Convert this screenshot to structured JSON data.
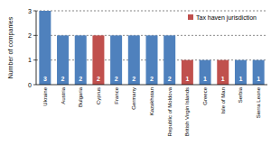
{
  "chart_data": {
    "type": "bar",
    "y_label": "Number of companies",
    "categories": [
      "Ukraine",
      "Austria",
      "Bulgaria",
      "Cyprus",
      "France",
      "Germany",
      "Kazakhstan",
      "Republic of Moldova",
      "British Virgin Islands",
      "Greece",
      "Isle of Man",
      "Serbia",
      "Sierra Leone"
    ],
    "series": [
      {
        "color": "#4f81bd",
        "values": [
          3,
          2,
          2,
          null,
          2,
          2,
          2,
          2,
          null,
          1,
          null,
          1,
          1
        ]
      },
      {
        "name": "Tax haven jurisdiction",
        "color": "#c0504d",
        "values": [
          null,
          null,
          null,
          2,
          null,
          null,
          null,
          null,
          1,
          null,
          1,
          null,
          null
        ]
      }
    ],
    "stacked": true,
    "data_labels": true,
    "legend": "top-right",
    "ylim": [
      0,
      3
    ],
    "yticks": [
      0,
      1,
      2,
      3
    ],
    "grid": true
  }
}
